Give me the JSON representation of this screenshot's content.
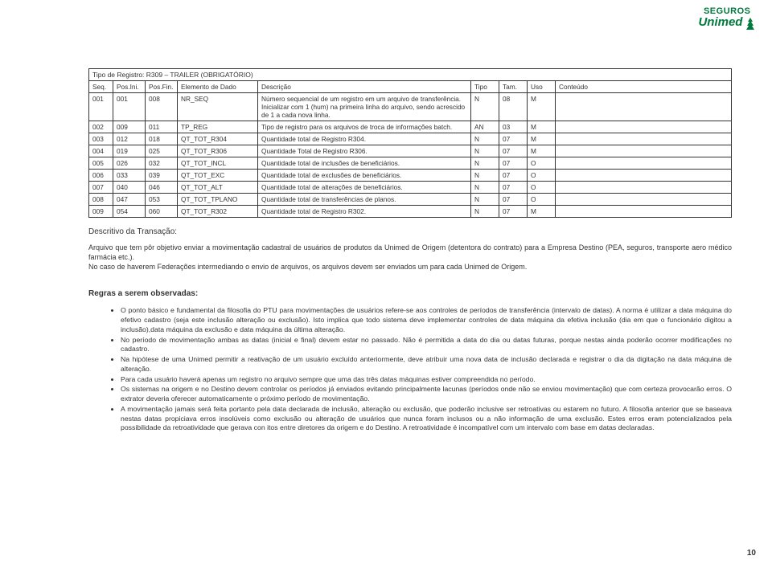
{
  "brand": {
    "line1": "SEGUROS",
    "line2": "Unimed",
    "color": "#007a3d"
  },
  "table": {
    "title": "Tipo de Registro: R309 – TRAILER (OBRIGATÓRIO)",
    "headers": [
      "Seq.",
      "Pos.Ini.",
      "Pos.Fin.",
      "Elemento de Dado",
      "Descrição",
      "Tipo",
      "Tam.",
      "Uso",
      "Conteúdo"
    ],
    "rows": [
      [
        "001",
        "001",
        "008",
        "NR_SEQ",
        "Número sequencial de um registro em um arquivo de transferência. Inicializar com 1 (hum) na primeira linha do arquivo, sendo acrescido de 1 a cada nova linha.",
        "N",
        "08",
        "M",
        ""
      ],
      [
        "002",
        "009",
        "011",
        "TP_REG",
        "Tipo de registro para os arquivos de troca de informações batch.",
        "AN",
        "03",
        "M",
        ""
      ],
      [
        "003",
        "012",
        "018",
        "QT_TOT_R304",
        "Quantidade total de Registro R304.",
        "N",
        "07",
        "M",
        ""
      ],
      [
        "004",
        "019",
        "025",
        "QT_TOT_R306",
        "Quantidade Total de Registro R306.",
        "N",
        "07",
        "M",
        ""
      ],
      [
        "005",
        "026",
        "032",
        "QT_TOT_INCL",
        "Quantidade total de inclusões de beneficiários.",
        "N",
        "07",
        "O",
        ""
      ],
      [
        "006",
        "033",
        "039",
        "QT_TOT_EXC",
        "Quantidade total de exclusões de beneficiários.",
        "N",
        "07",
        "O",
        ""
      ],
      [
        "007",
        "040",
        "046",
        "QT_TOT_ALT",
        "Quantidade total de alterações de beneficiários.",
        "N",
        "07",
        "O",
        ""
      ],
      [
        "008",
        "047",
        "053",
        "QT_TOT_TPLANO",
        "Quantidade total de transferências de planos.",
        "N",
        "07",
        "O",
        ""
      ],
      [
        "009",
        "054",
        "060",
        "QT_TOT_R302",
        "Quantidade total de Registro R302.",
        "N",
        "07",
        "M",
        ""
      ]
    ]
  },
  "descriptive": {
    "heading": "Descritivo da Transação:",
    "body": "Arquivo que tem pôr objetivo enviar a movimentação cadastral de usuários de produtos da Unimed de Origem (detentora do contrato) para a Empresa Destino (PEA, seguros, transporte aero médico farmácia etc.).\nNo caso de haverem Federações intermediando o envio de arquivos, os arquivos devem ser enviados um para cada Unimed de Origem."
  },
  "rules": {
    "heading": "Regras a serem observadas:",
    "items": [
      "O ponto básico e fundamental da filosofia do PTU para movimentações de usuários refere-se aos controles de períodos de transferência (intervalo de datas). A norma é utilizar a data máquina do efetivo cadastro (seja este inclusão alteração ou exclusão). Isto implica que todo sistema deve implementar controles de data máquina da efetiva inclusão (dia em que o funcionário digitou a inclusão),data máquina da exclusão e data máquina da última alteração.",
      "No período de movimentação ambas as datas (inicial e final) devem estar no passado. Não é permitida a data do dia ou datas futuras, porque nestas ainda poderão ocorrer modificações no cadastro.",
      "Na hipótese de uma Unimed permitir a reativação de um usuário excluído anteriormente, deve atribuir uma nova data de inclusão declarada e registrar o dia da digitação na data máquina de alteração.",
      "Para cada usuário haverá apenas um registro no arquivo sempre que uma das três datas máquinas estiver compreendida no período.",
      "Os sistemas na origem e no Destino devem controlar os períodos já enviados evitando principalmente lacunas (períodos onde não se enviou movimentação) que com certeza provocarão erros. O extrator deveria oferecer automaticamente o próximo período de movimentação.",
      "A movimentação jamais será feita portanto pela data declarada de inclusão, alteração ou exclusão, que poderão inclusive ser retroativas ou estarem no futuro. A filosofia anterior que se baseava nestas datas propiciava erros insolúveis como exclusão ou alteração de usuários que nunca foram inclusos ou a não informação de uma exclusão. Estes erros eram potencializados pela possibilidade da retroatividade que gerava con itos entre diretores da origem e do Destino. A retroatividade é incompatível com um intervalo com base em datas declaradas."
    ]
  },
  "pageNumber": "10"
}
